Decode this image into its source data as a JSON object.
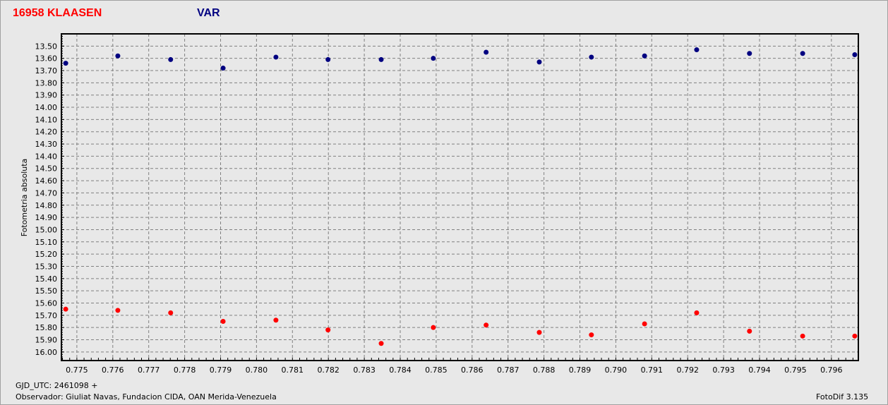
{
  "header": {
    "star_title": "16958 KLAASEN",
    "series_label": "VAR"
  },
  "footer": {
    "gjd": "GJD_UTC: 2461098 +",
    "observer": "Observador: Giuliat Navas, Fundacion CIDA, OAN  Merida-Venezuela",
    "software": "FotoDif 3.135"
  },
  "colors": {
    "var": "#000080",
    "comp": "#ff0000",
    "grid": "#808080",
    "background": "#e8e8e8"
  },
  "chart_data": {
    "type": "scatter",
    "title": "",
    "xlabel": "",
    "ylabel": "Fotometria absoluta",
    "xlim": [
      0.77457,
      0.79675
    ],
    "ylim": [
      13.4,
      16.07
    ],
    "y_inverted": true,
    "grid": true,
    "xticks": [
      "0.775",
      "0.776",
      "0.777",
      "0.778",
      "0.779",
      "0.780",
      "0.781",
      "0.782",
      "0.783",
      "0.784",
      "0.785",
      "0.786",
      "0.787",
      "0.788",
      "0.789",
      "0.790",
      "0.791",
      "0.792",
      "0.793",
      "0.794",
      "0.795",
      "0.796"
    ],
    "yticks": [
      "13.50",
      "13.60",
      "13.70",
      "13.80",
      "13.90",
      "14.00",
      "14.10",
      "14.20",
      "14.30",
      "14.40",
      "14.50",
      "14.60",
      "14.70",
      "14.80",
      "14.90",
      "15.00",
      "15.10",
      "15.20",
      "15.30",
      "15.40",
      "15.50",
      "15.60",
      "15.70",
      "15.80",
      "15.90",
      "16.00"
    ],
    "x": [
      0.77469,
      0.77614,
      0.77761,
      0.77907,
      0.78054,
      0.78199,
      0.78347,
      0.78492,
      0.78639,
      0.78787,
      0.78932,
      0.7908,
      0.79225,
      0.79372,
      0.7952,
      0.79665
    ],
    "series": [
      {
        "color": "#000080",
        "values": [
          13.64,
          13.58,
          13.61,
          13.68,
          13.59,
          13.61,
          13.61,
          13.6,
          13.55,
          13.63,
          13.59,
          13.58,
          13.53,
          13.56,
          13.56,
          13.57
        ]
      },
      {
        "color": "#ff0000",
        "values": [
          15.65,
          15.66,
          15.68,
          15.75,
          15.74,
          15.82,
          15.93,
          15.8,
          15.78,
          15.84,
          15.86,
          15.77,
          15.68,
          15.83,
          15.87,
          15.87
        ]
      }
    ]
  }
}
